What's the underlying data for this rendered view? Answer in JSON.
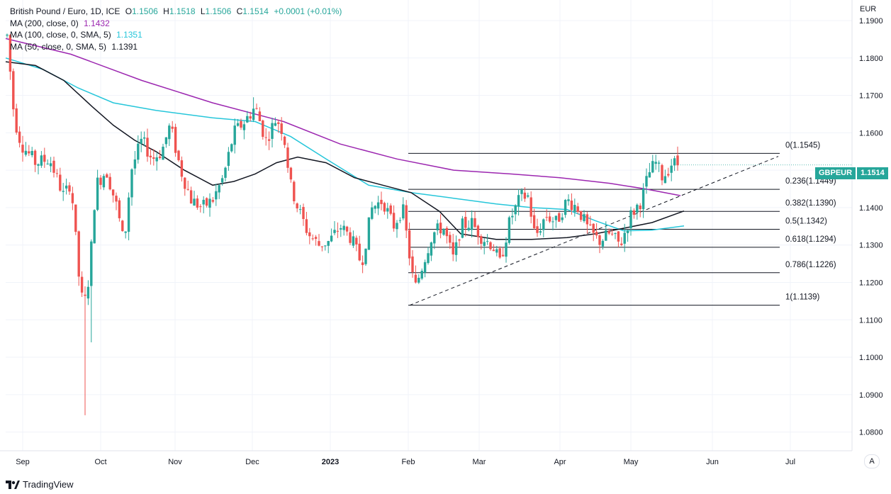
{
  "window": {
    "header": "British Pound / Euro, 1D, ICE",
    "ohlc": {
      "o_label": "O",
      "o": "1.1506",
      "h_label": "H",
      "h": "1.1518",
      "l_label": "L",
      "l": "1.1506",
      "c_label": "C",
      "c": "1.1514",
      "change": "+0.0001 (+0.01%)"
    },
    "ma200_label": "MA (200, close, 0)",
    "ma200_value": "1.1432",
    "ma100_label": "MA (100, close, 0, SMA, 5)",
    "ma100_value": "1.1351",
    "ma50_label": "MA (50, close, 0, SMA, 5)",
    "ma50_value": "1.1391",
    "currency": "EUR",
    "symbol_tag": "GBPEUR",
    "last_price_tag": "1.1514",
    "auto_label": "A",
    "brand": "TradingView"
  },
  "colors": {
    "up": "#26a69a",
    "down": "#ef5350",
    "ma200": "#9c27b0",
    "ma100": "#26c6da",
    "ma50": "#131722",
    "grid": "#f0f3fa",
    "axis_text": "#131722"
  },
  "chart_data": {
    "type": "candlestick",
    "title": "British Pound / Euro, 1D, ICE",
    "ylim": [
      1.075,
      1.1955
    ],
    "y_ticks": [
      "1.0800",
      "1.0900",
      "1.1000",
      "1.1100",
      "1.1200",
      "1.1300",
      "1.1400",
      "1.1500",
      "1.1600",
      "1.1700",
      "1.1800",
      "1.1900"
    ],
    "x_ticks": [
      "Sep",
      "Oct",
      "Nov",
      "Dec",
      "2023",
      "Feb",
      "Mar",
      "Apr",
      "May",
      "Jun",
      "Jul"
    ],
    "grid": true,
    "fibonacci": [
      {
        "label": "0(1.1545)",
        "value": 1.1545
      },
      {
        "label": "0.236(1.1449)",
        "value": 1.1449
      },
      {
        "label": "0.382(1.1390)",
        "value": 1.139
      },
      {
        "label": "0.5(1.1342)",
        "value": 1.1342
      },
      {
        "label": "0.618(1.1294)",
        "value": 1.1294
      },
      {
        "label": "0.786(1.1226)",
        "value": 1.1226
      },
      {
        "label": "1(1.1139)",
        "value": 1.1139
      }
    ],
    "trendline": {
      "style": "dashed",
      "from": 1.1139,
      "to": 1.1537
    },
    "series": [
      {
        "name": "MA (200, close, 0)",
        "value": 1.1432
      },
      {
        "name": "MA (100, close, 0, SMA, 5)",
        "value": 1.1351
      },
      {
        "name": "MA (50, close, 0, SMA, 5)",
        "value": 1.1391
      }
    ],
    "monthly_closes": [
      {
        "month": "Sep",
        "close": 1.147
      },
      {
        "month": "Oct",
        "close": 1.161
      },
      {
        "month": "Nov",
        "close": 1.162
      },
      {
        "month": "Dec",
        "close": 1.13
      },
      {
        "month": "2023",
        "close": 1.13
      },
      {
        "month": "Feb",
        "close": 1.13
      },
      {
        "month": "Mar",
        "close": 1.137
      },
      {
        "month": "Apr",
        "close": 1.134
      },
      {
        "month": "May",
        "close": 1.1514
      }
    ],
    "last": {
      "o": 1.1506,
      "h": 1.1518,
      "l": 1.1506,
      "c": 1.1514
    }
  }
}
